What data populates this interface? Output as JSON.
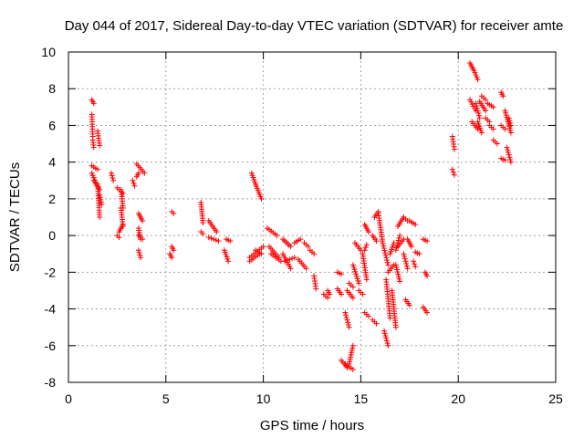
{
  "chart_data": {
    "type": "scatter",
    "title": "Day 044 of 2017, Sidereal Day-to-day VTEC variation (SDTVAR) for receiver amte",
    "xlabel": "GPS time / hours",
    "ylabel": "SDTVAR / TECUs",
    "xlim": [
      0,
      25
    ],
    "ylim": [
      -8,
      10
    ],
    "xticks": [
      "0",
      "5",
      "10",
      "15",
      "20",
      "25"
    ],
    "yticks": [
      "-8",
      "-6",
      "-4",
      "-2",
      "0",
      "2",
      "4",
      "6",
      "8",
      "10"
    ],
    "grid": true,
    "marker": "+",
    "color": "#ff0000",
    "series": [
      {
        "name": "SDTVAR",
        "segments": [
          [
            1.2,
            7.4,
            1.3,
            7.2
          ],
          [
            1.2,
            6.6,
            1.25,
            5.4
          ],
          [
            1.25,
            5.2,
            1.3,
            4.8
          ],
          [
            1.2,
            3.8,
            1.5,
            3.6
          ],
          [
            1.2,
            3.4,
            1.4,
            2.9
          ],
          [
            1.3,
            3.0,
            1.6,
            2.5
          ],
          [
            1.5,
            2.8,
            1.6,
            1.0
          ],
          [
            1.6,
            2.2,
            1.7,
            1.7
          ],
          [
            1.5,
            5.7,
            1.6,
            4.9
          ],
          [
            2.2,
            3.4,
            2.3,
            3.0
          ],
          [
            2.5,
            2.6,
            2.8,
            2.3
          ],
          [
            2.7,
            2.5,
            2.8,
            1.5
          ],
          [
            2.7,
            1.5,
            2.8,
            0.5
          ],
          [
            2.5,
            0.0,
            2.6,
            -0.1
          ],
          [
            2.6,
            0.2,
            2.8,
            0.6
          ],
          [
            3.3,
            3.0,
            3.4,
            2.7
          ],
          [
            3.5,
            3.2,
            3.6,
            3.4
          ],
          [
            3.5,
            3.9,
            3.9,
            3.4
          ],
          [
            3.6,
            1.2,
            3.8,
            0.8
          ],
          [
            3.6,
            0.4,
            3.7,
            -0.2
          ],
          [
            3.6,
            -0.8,
            3.7,
            -1.2
          ],
          [
            3.6,
            0.0,
            3.8,
            -0.2
          ],
          [
            5.3,
            1.3,
            5.4,
            1.2
          ],
          [
            5.3,
            -0.6,
            5.4,
            -0.8
          ],
          [
            5.2,
            -1.0,
            5.3,
            -1.2
          ],
          [
            6.8,
            1.8,
            6.9,
            0.7
          ],
          [
            6.8,
            0.2,
            6.9,
            0.1
          ],
          [
            7.2,
            0.8,
            7.6,
            0.2
          ],
          [
            7.2,
            -0.1,
            7.7,
            -0.3
          ],
          [
            8.1,
            -0.2,
            8.3,
            -0.3
          ],
          [
            8.0,
            -0.8,
            8.2,
            -1.4
          ],
          [
            9.4,
            3.4,
            9.6,
            2.8
          ],
          [
            9.6,
            2.8,
            9.9,
            2.0
          ],
          [
            9.3,
            -1.2,
            10.0,
            -0.6
          ],
          [
            9.3,
            -1.4,
            9.8,
            -1.0
          ],
          [
            9.6,
            -0.8,
            9.9,
            -1.0
          ],
          [
            10.2,
            0.4,
            10.7,
            0.0
          ],
          [
            10.4,
            -1.0,
            10.9,
            -1.4
          ],
          [
            10.3,
            -0.6,
            10.8,
            -1.2
          ],
          [
            11.0,
            -0.2,
            11.4,
            -0.6
          ],
          [
            11.0,
            -1.0,
            11.4,
            -1.8
          ],
          [
            11.1,
            -1.4,
            11.6,
            -1.2
          ],
          [
            11.6,
            -0.4,
            11.9,
            -0.2
          ],
          [
            11.8,
            -1.3,
            12.2,
            -1.8
          ],
          [
            12.1,
            -0.4,
            12.3,
            -0.6
          ],
          [
            12.4,
            -0.8,
            12.6,
            -1.0
          ],
          [
            12.6,
            -2.2,
            12.7,
            -2.9
          ],
          [
            13.1,
            -3.2,
            13.3,
            -3.4
          ],
          [
            13.3,
            -3.0,
            13.4,
            -3.2
          ],
          [
            13.8,
            -2.0,
            14.0,
            -2.1
          ],
          [
            13.8,
            -2.9,
            14.0,
            -3.2
          ],
          [
            14.0,
            -6.8,
            14.3,
            -7.2
          ],
          [
            14.2,
            -7.0,
            14.6,
            -7.3
          ],
          [
            14.4,
            -7.0,
            14.6,
            -6.0
          ],
          [
            14.2,
            -4.2,
            14.4,
            -5.0
          ],
          [
            14.3,
            -3.0,
            14.6,
            -3.4
          ],
          [
            14.4,
            -2.6,
            14.6,
            -2.8
          ],
          [
            14.6,
            -1.6,
            14.9,
            -2.6
          ],
          [
            14.7,
            -0.4,
            15.0,
            -0.8
          ],
          [
            14.9,
            -3.0,
            15.1,
            -3.2
          ],
          [
            15.1,
            -1.0,
            15.3,
            -2.4
          ],
          [
            15.2,
            -0.8,
            15.3,
            -0.5
          ],
          [
            15.2,
            -4.2,
            15.4,
            -4.4
          ],
          [
            15.2,
            0.6,
            15.4,
            0.2
          ],
          [
            15.6,
            0.0,
            15.8,
            -0.3
          ],
          [
            15.6,
            -4.6,
            15.8,
            -4.8
          ],
          [
            15.7,
            1.0,
            15.9,
            1.3
          ],
          [
            15.9,
            1.2,
            16.1,
            -0.2
          ],
          [
            16.1,
            -0.3,
            16.4,
            -1.6
          ],
          [
            16.2,
            -5.2,
            16.4,
            -6.0
          ],
          [
            16.3,
            -2.4,
            16.5,
            -4.5
          ],
          [
            16.4,
            -2.0,
            16.7,
            -1.6
          ],
          [
            16.5,
            -1.0,
            16.7,
            -0.4
          ],
          [
            16.6,
            -3.0,
            16.8,
            -5.0
          ],
          [
            16.8,
            -0.8,
            17.0,
            0.0
          ],
          [
            16.8,
            -1.6,
            17.0,
            -2.5
          ],
          [
            16.9,
            0.5,
            17.2,
            1.0
          ],
          [
            16.9,
            -0.6,
            17.2,
            -0.2
          ],
          [
            17.2,
            -1.0,
            17.4,
            -1.8
          ],
          [
            17.2,
            1.0,
            17.4,
            0.8
          ],
          [
            17.3,
            -3.5,
            17.5,
            -3.8
          ],
          [
            17.4,
            -0.2,
            17.6,
            -0.6
          ],
          [
            17.5,
            0.8,
            17.8,
            0.6
          ],
          [
            17.7,
            -1.4,
            17.8,
            -1.7
          ],
          [
            17.8,
            -0.9,
            18.0,
            -1.0
          ],
          [
            18.2,
            -0.2,
            18.4,
            -0.3
          ],
          [
            18.3,
            -2.0,
            18.4,
            -2.2
          ],
          [
            18.2,
            -3.9,
            18.4,
            -4.2
          ],
          [
            19.7,
            5.4,
            19.8,
            4.7
          ],
          [
            19.7,
            3.6,
            19.8,
            3.3
          ],
          [
            20.6,
            9.4,
            20.8,
            9.0
          ],
          [
            20.8,
            9.0,
            21.0,
            8.5
          ],
          [
            20.6,
            7.4,
            20.9,
            6.8
          ],
          [
            20.7,
            6.2,
            21.0,
            5.8
          ],
          [
            20.9,
            7.2,
            21.1,
            6.4
          ],
          [
            21.0,
            6.2,
            21.2,
            5.6
          ],
          [
            21.1,
            7.3,
            21.4,
            6.8
          ],
          [
            21.2,
            7.6,
            21.4,
            7.4
          ],
          [
            21.4,
            6.4,
            21.6,
            6.2
          ],
          [
            21.5,
            7.2,
            21.8,
            7.0
          ],
          [
            21.6,
            6.0,
            21.8,
            5.8
          ],
          [
            21.8,
            5.2,
            22.0,
            5.0
          ],
          [
            22.2,
            7.8,
            22.3,
            7.6
          ],
          [
            22.2,
            6.0,
            22.4,
            5.8
          ],
          [
            22.2,
            4.2,
            22.4,
            4.1
          ],
          [
            22.4,
            6.8,
            22.7,
            5.6
          ],
          [
            22.5,
            4.8,
            22.7,
            4.0
          ],
          [
            22.6,
            6.4,
            22.7,
            6.0
          ]
        ]
      }
    ]
  }
}
